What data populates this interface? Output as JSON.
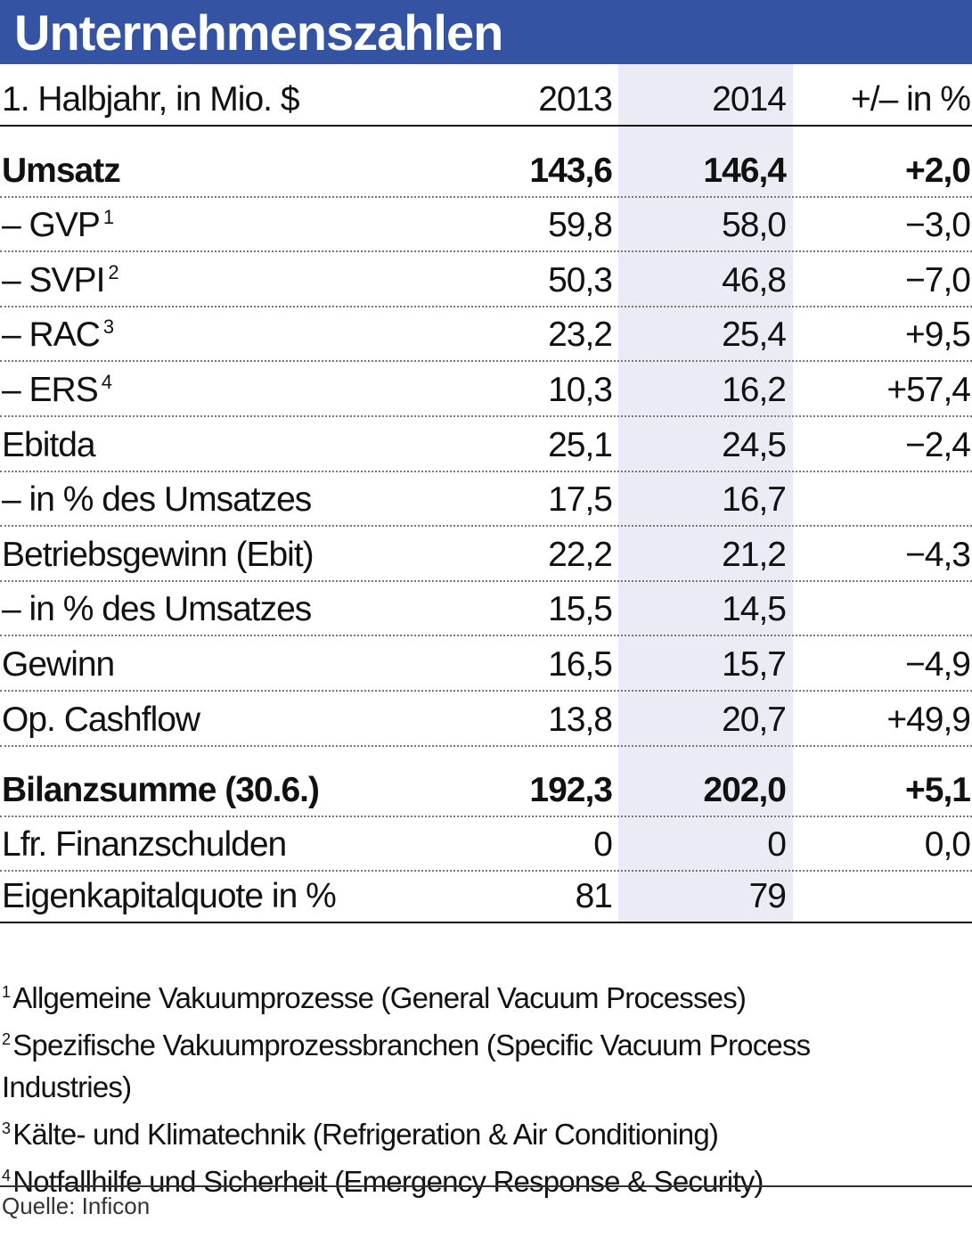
{
  "title": "Unternehmenszahlen",
  "colors": {
    "header": "#3553a3",
    "highlight_column": "#ebebf5"
  },
  "chart_data": {
    "type": "table",
    "title": "Unternehmenszahlen",
    "columns": [
      "1. Halbjahr, in Mio. $",
      "2013",
      "2014",
      "+/– in %"
    ],
    "rows": [
      {
        "label": "Umsatz",
        "sup": "",
        "v2013": "143,6",
        "v2014": "146,4",
        "change": "+2,0",
        "bold": true
      },
      {
        "label": "– GVP",
        "sup": "1",
        "v2013": "59,8",
        "v2014": "58,0",
        "change": "−3,0"
      },
      {
        "label": "– SVPI",
        "sup": "2",
        "v2013": "50,3",
        "v2014": "46,8",
        "change": "−7,0"
      },
      {
        "label": "– RAC",
        "sup": "3",
        "v2013": "23,2",
        "v2014": "25,4",
        "change": "+9,5"
      },
      {
        "label": "– ERS",
        "sup": "4",
        "v2013": "10,3",
        "v2014": "16,2",
        "change": "+57,4"
      },
      {
        "label": "Ebitda",
        "sup": "",
        "v2013": "25,1",
        "v2014": "24,5",
        "change": "−2,4"
      },
      {
        "label": "– in % des Umsatzes",
        "sup": "",
        "v2013": "17,5",
        "v2014": "16,7",
        "change": ""
      },
      {
        "label": "Betriebsgewinn (Ebit)",
        "sup": "",
        "v2013": "22,2",
        "v2014": "21,2",
        "change": "−4,3"
      },
      {
        "label": "– in % des Umsatzes",
        "sup": "",
        "v2013": "15,5",
        "v2014": "14,5",
        "change": ""
      },
      {
        "label": "Gewinn",
        "sup": "",
        "v2013": "16,5",
        "v2014": "15,7",
        "change": "−4,9"
      },
      {
        "label": "Op. Cashflow",
        "sup": "",
        "v2013": "13,8",
        "v2014": "20,7",
        "change": "+49,9"
      },
      {
        "label": "Bilanzsumme (30.6.)",
        "sup": "",
        "v2013": "192,3",
        "v2014": "202,0",
        "change": "+5,1",
        "bold": true
      },
      {
        "label": "Lfr. Finanzschulden",
        "sup": "",
        "v2013": "0",
        "v2014": "0",
        "change": "0,0"
      },
      {
        "label": "Eigenkapitalquote in %",
        "sup": "",
        "v2013": "81",
        "v2014": "79",
        "change": ""
      }
    ]
  },
  "footnotes": [
    {
      "num": "1",
      "text": "Allgemeine Vakuumprozesse (General Vacuum Processes)"
    },
    {
      "num": "2",
      "text": "Spezifische Vakuumprozessbranchen (Specific Vacuum Process Industries)"
    },
    {
      "num": "3",
      "text": "Kälte- und Klimatechnik (Refrigeration & Air Conditioning)"
    },
    {
      "num": "4",
      "text": "Notfallhilfe und Sicherheit (Emergency Response & Security)"
    }
  ],
  "source": "Quelle: Inficon"
}
